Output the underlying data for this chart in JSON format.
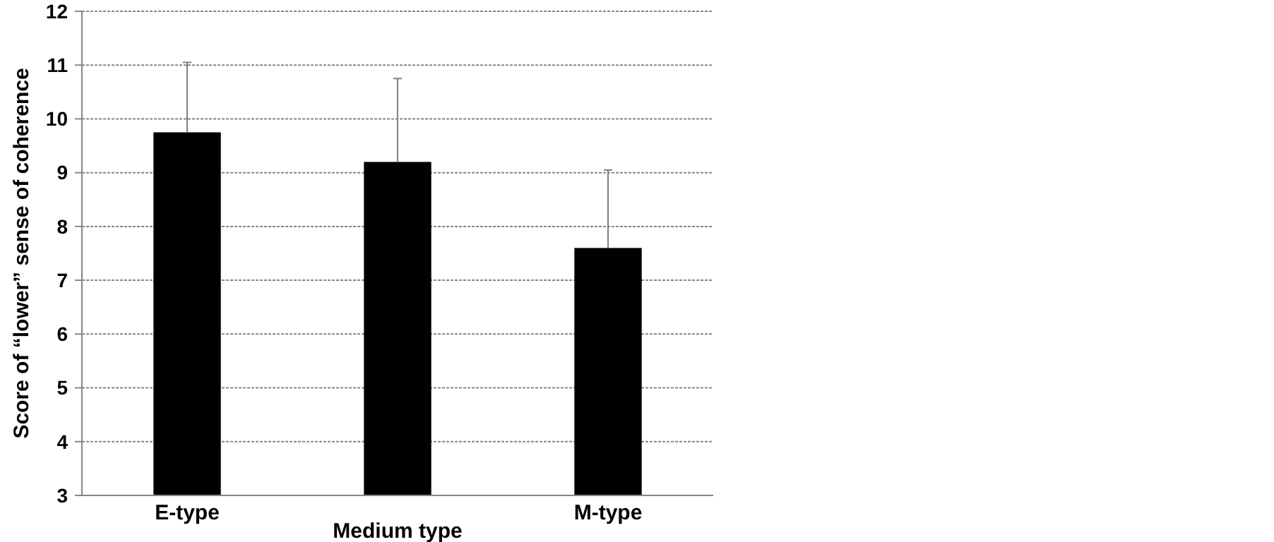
{
  "chart_data": {
    "type": "bar",
    "ylabel": "Score of “lower” sense of coherence",
    "categories": [
      "E-type",
      "Medium type",
      "M-type"
    ],
    "values": [
      9.75,
      9.2,
      7.6
    ],
    "color": "#000000",
    "errors": [
      [
        9.75,
        11.05
      ],
      [
        9.2,
        10.75
      ],
      [
        7.6,
        9.05
      ]
    ],
    "ylim": [
      3,
      12
    ],
    "yticks": [
      3,
      4,
      5,
      6,
      7,
      8,
      9,
      10,
      11,
      12
    ],
    "grid": "y"
  }
}
